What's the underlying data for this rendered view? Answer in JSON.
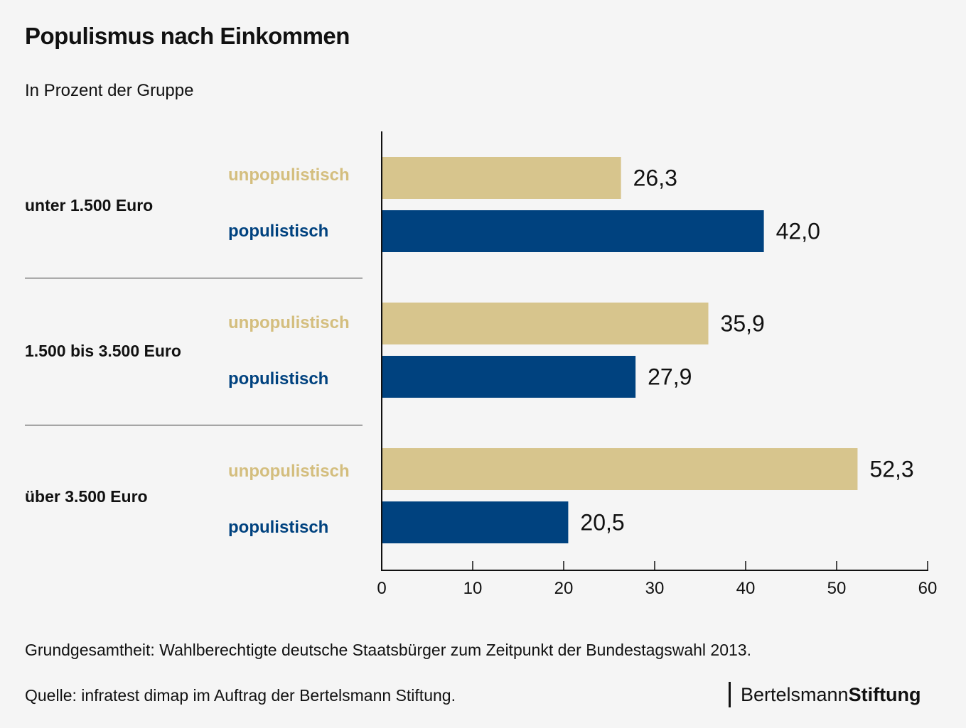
{
  "chart_data": {
    "type": "bar",
    "orientation": "horizontal",
    "title": "Populismus nach Einkommen",
    "subtitle": "In Prozent der Gruppe",
    "categories": [
      "unter 1.500 Euro",
      "1.500 bis 3.500 Euro",
      "über 3.500 Euro"
    ],
    "series": [
      {
        "name": "unpopulistisch",
        "color": "#d7c58d",
        "values": [
          26.3,
          35.9,
          52.3
        ],
        "labels": [
          "26,3",
          "35,9",
          "52,3"
        ]
      },
      {
        "name": "populistisch",
        "color": "#00427f",
        "values": [
          42.0,
          27.9,
          20.5
        ],
        "labels": [
          "42,0",
          "27,9",
          "20,5"
        ]
      }
    ],
    "xlabel": "",
    "ylabel": "",
    "xlim": [
      0,
      60
    ],
    "xticks": [
      "0",
      "10",
      "20",
      "30",
      "40",
      "50",
      "60"
    ],
    "grid": false,
    "legend": "inline-left"
  },
  "footer": {
    "population": "Grundgesamtheit: Wahlberechtigte deutsche Staatsbürger zum Zeitpunkt der Bundestagswahl 2013.",
    "source": "Quelle: infratest dimap im Auftrag der Bertelsmann Stiftung.",
    "logo_regular": "Bertelsmann",
    "logo_bold": "Stiftung"
  }
}
